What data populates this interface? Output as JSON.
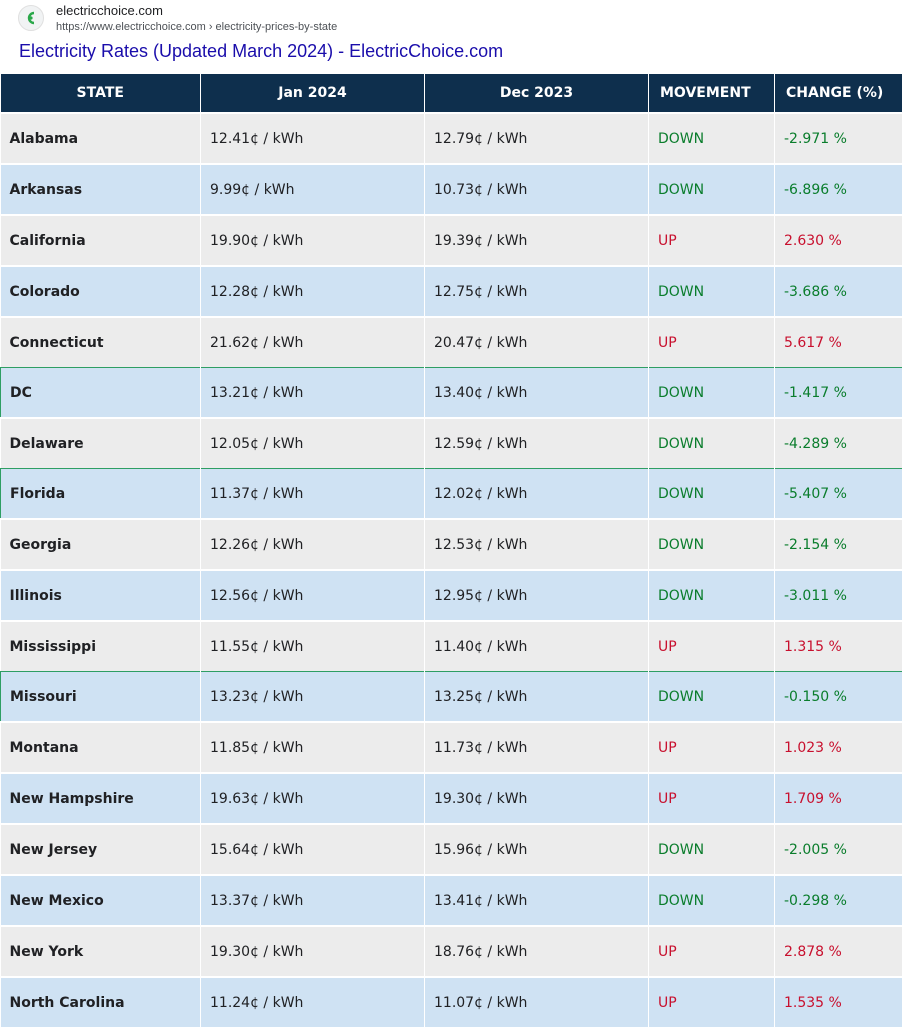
{
  "result": {
    "site_name": "electricchoice.com",
    "url": "https://www.electricchoice.com › electricity-prices-by-state",
    "title": "Electricity Rates (Updated March 2024) - ElectricChoice.com"
  },
  "colors": {
    "header_bg": "#0e2f4d",
    "down": "#0a7d2c",
    "up": "#c8102e",
    "row_gray": "#ececec",
    "row_blue": "#cfe2f3"
  },
  "table": {
    "headers": [
      "STATE",
      "Jan 2024",
      "Dec 2023",
      "MOVEMENT",
      "CHANGE (%)"
    ],
    "rows": [
      {
        "state": "Alabama",
        "jan": "12.41¢ / kWh",
        "dec": "12.79¢ / kWh",
        "movement": "DOWN",
        "change": "-2.971 %"
      },
      {
        "state": "Arkansas",
        "jan": "9.99¢ / kWh",
        "dec": "10.73¢ / kWh",
        "movement": "DOWN",
        "change": "-6.896 %"
      },
      {
        "state": "California",
        "jan": "19.90¢ / kWh",
        "dec": "19.39¢ / kWh",
        "movement": "UP",
        "change": "2.630 %"
      },
      {
        "state": "Colorado",
        "jan": "12.28¢ / kWh",
        "dec": "12.75¢ / kWh",
        "movement": "DOWN",
        "change": "-3.686 %"
      },
      {
        "state": "Connecticut",
        "jan": "21.62¢ / kWh",
        "dec": "20.47¢ / kWh",
        "movement": "UP",
        "change": "5.617 %"
      },
      {
        "state": "DC",
        "jan": "13.21¢ / kWh",
        "dec": "13.40¢ / kWh",
        "movement": "DOWN",
        "change": "-1.417 %"
      },
      {
        "state": "Delaware",
        "jan": "12.05¢ / kWh",
        "dec": "12.59¢ / kWh",
        "movement": "DOWN",
        "change": "-4.289 %"
      },
      {
        "state": "Florida",
        "jan": "11.37¢ / kWh",
        "dec": "12.02¢ / kWh",
        "movement": "DOWN",
        "change": "-5.407 %"
      },
      {
        "state": "Georgia",
        "jan": "12.26¢ / kWh",
        "dec": "12.53¢ / kWh",
        "movement": "DOWN",
        "change": "-2.154 %"
      },
      {
        "state": "Illinois",
        "jan": "12.56¢ / kWh",
        "dec": "12.95¢ / kWh",
        "movement": "DOWN",
        "change": "-3.011 %"
      },
      {
        "state": "Mississippi",
        "jan": "11.55¢ / kWh",
        "dec": "11.40¢ / kWh",
        "movement": "UP",
        "change": "1.315 %"
      },
      {
        "state": "Missouri",
        "jan": "13.23¢ / kWh",
        "dec": "13.25¢ / kWh",
        "movement": "DOWN",
        "change": "-0.150 %"
      },
      {
        "state": "Montana",
        "jan": "11.85¢ / kWh",
        "dec": "11.73¢ / kWh",
        "movement": "UP",
        "change": "1.023 %"
      },
      {
        "state": "New Hampshire",
        "jan": "19.63¢ / kWh",
        "dec": "19.30¢ / kWh",
        "movement": "UP",
        "change": "1.709 %"
      },
      {
        "state": "New Jersey",
        "jan": "15.64¢ / kWh",
        "dec": "15.96¢ / kWh",
        "movement": "DOWN",
        "change": "-2.005 %"
      },
      {
        "state": "New Mexico",
        "jan": "13.37¢ / kWh",
        "dec": "13.41¢ / kWh",
        "movement": "DOWN",
        "change": "-0.298 %"
      },
      {
        "state": "New York",
        "jan": "19.30¢ / kWh",
        "dec": "18.76¢ / kWh",
        "movement": "UP",
        "change": "2.878 %"
      },
      {
        "state": "North Carolina",
        "jan": "11.24¢ / kWh",
        "dec": "11.07¢ / kWh",
        "movement": "UP",
        "change": "1.535 %"
      }
    ]
  }
}
